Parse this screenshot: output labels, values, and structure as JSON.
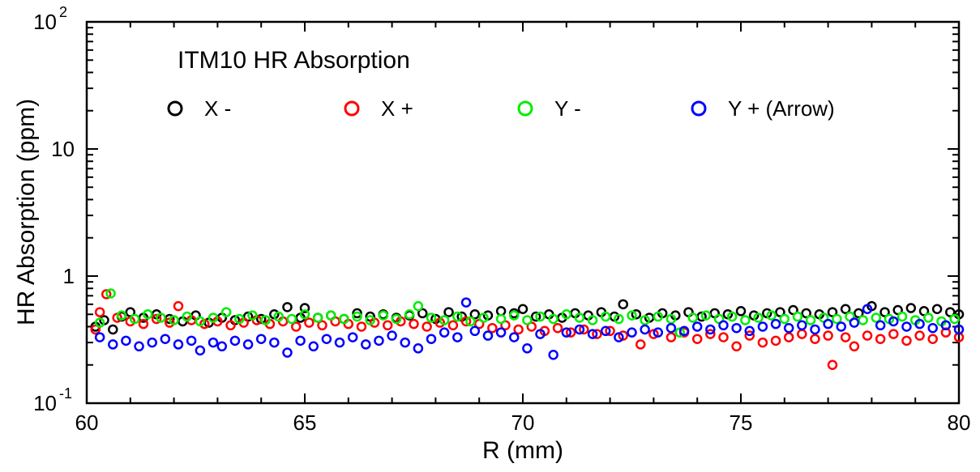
{
  "chart_data": {
    "type": "scatter",
    "title": "ITM10 HR Absorption",
    "xlabel": "R (mm)",
    "ylabel": "HR Absorption (ppm)",
    "xlim": [
      60,
      80
    ],
    "ylim": [
      0.1,
      100
    ],
    "yscale": "log",
    "xticks": [
      60,
      65,
      70,
      75,
      80
    ],
    "x_tick_labels": [
      "60",
      "65",
      "70",
      "75",
      "80"
    ],
    "y_tick_labels": [
      {
        "value": 100,
        "base": "10",
        "exponent": "2"
      },
      {
        "value": 10,
        "base": "10",
        "exponent": ""
      },
      {
        "value": 1,
        "base": "1",
        "exponent": ""
      },
      {
        "value": 0.1,
        "base": "10",
        "exponent": "-1"
      }
    ],
    "grid": false,
    "legend_position": "top",
    "series": [
      {
        "name": "X -",
        "color": "#000000",
        "points": [
          [
            60.2,
            0.4
          ],
          [
            60.4,
            0.45
          ],
          [
            60.6,
            0.38
          ],
          [
            60.8,
            0.48
          ],
          [
            61.0,
            0.52
          ],
          [
            61.3,
            0.47
          ],
          [
            61.6,
            0.5
          ],
          [
            61.9,
            0.46
          ],
          [
            62.2,
            0.44
          ],
          [
            62.5,
            0.49
          ],
          [
            62.8,
            0.43
          ],
          [
            63.1,
            0.47
          ],
          [
            63.4,
            0.45
          ],
          [
            63.7,
            0.48
          ],
          [
            64.0,
            0.46
          ],
          [
            64.3,
            0.5
          ],
          [
            64.6,
            0.57
          ],
          [
            64.9,
            0.47
          ],
          [
            65.0,
            0.56
          ],
          [
            65.3,
            0.47
          ],
          [
            65.6,
            0.49
          ],
          [
            65.9,
            0.46
          ],
          [
            66.2,
            0.51
          ],
          [
            66.5,
            0.48
          ],
          [
            66.8,
            0.5
          ],
          [
            67.1,
            0.47
          ],
          [
            67.4,
            0.49
          ],
          [
            67.7,
            0.51
          ],
          [
            68.0,
            0.46
          ],
          [
            68.3,
            0.52
          ],
          [
            68.6,
            0.48
          ],
          [
            68.9,
            0.5
          ],
          [
            69.2,
            0.49
          ],
          [
            69.5,
            0.53
          ],
          [
            69.8,
            0.51
          ],
          [
            70.0,
            0.55
          ],
          [
            70.3,
            0.48
          ],
          [
            70.6,
            0.5
          ],
          [
            70.9,
            0.47
          ],
          [
            71.2,
            0.51
          ],
          [
            71.5,
            0.49
          ],
          [
            71.8,
            0.52
          ],
          [
            72.1,
            0.48
          ],
          [
            72.3,
            0.6
          ],
          [
            72.6,
            0.5
          ],
          [
            72.9,
            0.47
          ],
          [
            73.2,
            0.51
          ],
          [
            73.5,
            0.49
          ],
          [
            73.8,
            0.52
          ],
          [
            74.1,
            0.48
          ],
          [
            74.4,
            0.51
          ],
          [
            74.7,
            0.5
          ],
          [
            75.0,
            0.53
          ],
          [
            75.3,
            0.49
          ],
          [
            75.6,
            0.51
          ],
          [
            75.9,
            0.52
          ],
          [
            76.2,
            0.54
          ],
          [
            76.5,
            0.51
          ],
          [
            76.8,
            0.5
          ],
          [
            77.1,
            0.52
          ],
          [
            77.4,
            0.55
          ],
          [
            77.7,
            0.51
          ],
          [
            78.0,
            0.58
          ],
          [
            78.3,
            0.52
          ],
          [
            78.6,
            0.54
          ],
          [
            78.9,
            0.56
          ],
          [
            79.2,
            0.53
          ],
          [
            79.5,
            0.55
          ],
          [
            79.8,
            0.52
          ],
          [
            80.0,
            0.5
          ]
        ]
      },
      {
        "name": "X +",
        "color": "#ff0000",
        "points": [
          [
            60.2,
            0.38
          ],
          [
            60.3,
            0.52
          ],
          [
            60.45,
            0.72
          ],
          [
            60.7,
            0.47
          ],
          [
            61.0,
            0.44
          ],
          [
            61.3,
            0.42
          ],
          [
            61.6,
            0.46
          ],
          [
            61.9,
            0.43
          ],
          [
            62.1,
            0.58
          ],
          [
            62.4,
            0.45
          ],
          [
            62.7,
            0.42
          ],
          [
            63.0,
            0.44
          ],
          [
            63.3,
            0.41
          ],
          [
            63.6,
            0.43
          ],
          [
            63.9,
            0.45
          ],
          [
            64.2,
            0.42
          ],
          [
            64.5,
            0.44
          ],
          [
            64.8,
            0.4
          ],
          [
            65.1,
            0.43
          ],
          [
            65.4,
            0.41
          ],
          [
            65.7,
            0.44
          ],
          [
            66.0,
            0.42
          ],
          [
            66.3,
            0.4
          ],
          [
            66.6,
            0.43
          ],
          [
            66.9,
            0.41
          ],
          [
            67.2,
            0.44
          ],
          [
            67.5,
            0.42
          ],
          [
            67.8,
            0.4
          ],
          [
            68.1,
            0.43
          ],
          [
            68.4,
            0.41
          ],
          [
            68.7,
            0.44
          ],
          [
            69.0,
            0.42
          ],
          [
            69.3,
            0.39
          ],
          [
            69.6,
            0.41
          ],
          [
            69.9,
            0.38
          ],
          [
            70.2,
            0.4
          ],
          [
            70.5,
            0.37
          ],
          [
            70.8,
            0.39
          ],
          [
            71.1,
            0.36
          ],
          [
            71.4,
            0.38
          ],
          [
            71.7,
            0.35
          ],
          [
            72.0,
            0.37
          ],
          [
            72.3,
            0.34
          ],
          [
            72.7,
            0.29
          ],
          [
            73.0,
            0.35
          ],
          [
            73.4,
            0.33
          ],
          [
            73.7,
            0.36
          ],
          [
            74.0,
            0.32
          ],
          [
            74.3,
            0.35
          ],
          [
            74.6,
            0.33
          ],
          [
            74.9,
            0.28
          ],
          [
            75.2,
            0.34
          ],
          [
            75.5,
            0.3
          ],
          [
            75.8,
            0.31
          ],
          [
            76.1,
            0.33
          ],
          [
            76.4,
            0.35
          ],
          [
            76.7,
            0.32
          ],
          [
            77.0,
            0.34
          ],
          [
            77.1,
            0.2
          ],
          [
            77.4,
            0.33
          ],
          [
            77.6,
            0.28
          ],
          [
            77.9,
            0.34
          ],
          [
            78.2,
            0.32
          ],
          [
            78.5,
            0.35
          ],
          [
            78.8,
            0.31
          ],
          [
            79.1,
            0.34
          ],
          [
            79.4,
            0.32
          ],
          [
            79.7,
            0.36
          ],
          [
            80.0,
            0.33
          ]
        ]
      },
      {
        "name": "Y -",
        "color": "#00ee00",
        "points": [
          [
            60.3,
            0.43
          ],
          [
            60.55,
            0.73
          ],
          [
            60.8,
            0.49
          ],
          [
            61.1,
            0.46
          ],
          [
            61.4,
            0.5
          ],
          [
            61.7,
            0.47
          ],
          [
            62.0,
            0.45
          ],
          [
            62.3,
            0.48
          ],
          [
            62.6,
            0.44
          ],
          [
            62.9,
            0.47
          ],
          [
            63.2,
            0.52
          ],
          [
            63.5,
            0.46
          ],
          [
            63.8,
            0.49
          ],
          [
            64.1,
            0.45
          ],
          [
            64.4,
            0.48
          ],
          [
            64.7,
            0.46
          ],
          [
            65.0,
            0.5
          ],
          [
            65.3,
            0.47
          ],
          [
            65.6,
            0.49
          ],
          [
            65.9,
            0.46
          ],
          [
            66.2,
            0.48
          ],
          [
            66.5,
            0.45
          ],
          [
            66.8,
            0.49
          ],
          [
            67.1,
            0.46
          ],
          [
            67.4,
            0.5
          ],
          [
            67.6,
            0.58
          ],
          [
            67.9,
            0.47
          ],
          [
            68.2,
            0.45
          ],
          [
            68.5,
            0.48
          ],
          [
            68.8,
            0.44
          ],
          [
            69.1,
            0.47
          ],
          [
            69.2,
            0.34
          ],
          [
            69.5,
            0.46
          ],
          [
            69.8,
            0.49
          ],
          [
            70.1,
            0.45
          ],
          [
            70.4,
            0.48
          ],
          [
            70.7,
            0.46
          ],
          [
            71.0,
            0.5
          ],
          [
            71.3,
            0.47
          ],
          [
            71.6,
            0.45
          ],
          [
            71.9,
            0.48
          ],
          [
            72.2,
            0.46
          ],
          [
            72.5,
            0.49
          ],
          [
            72.8,
            0.45
          ],
          [
            73.1,
            0.48
          ],
          [
            73.4,
            0.46
          ],
          [
            73.6,
            0.36
          ],
          [
            73.9,
            0.47
          ],
          [
            74.2,
            0.49
          ],
          [
            74.5,
            0.46
          ],
          [
            74.8,
            0.48
          ],
          [
            75.1,
            0.45
          ],
          [
            75.4,
            0.47
          ],
          [
            75.7,
            0.49
          ],
          [
            76.0,
            0.46
          ],
          [
            76.3,
            0.48
          ],
          [
            76.6,
            0.45
          ],
          [
            76.9,
            0.47
          ],
          [
            77.2,
            0.46
          ],
          [
            77.5,
            0.48
          ],
          [
            77.8,
            0.45
          ],
          [
            78.1,
            0.47
          ],
          [
            78.4,
            0.46
          ],
          [
            78.7,
            0.48
          ],
          [
            79.0,
            0.45
          ],
          [
            79.3,
            0.47
          ],
          [
            79.6,
            0.44
          ],
          [
            79.9,
            0.46
          ]
        ]
      },
      {
        "name": "Y + (Arrow)",
        "color": "#0000ff",
        "points": [
          [
            60.3,
            0.33
          ],
          [
            60.6,
            0.29
          ],
          [
            60.9,
            0.31
          ],
          [
            61.2,
            0.28
          ],
          [
            61.5,
            0.3
          ],
          [
            61.8,
            0.32
          ],
          [
            62.1,
            0.29
          ],
          [
            62.4,
            0.31
          ],
          [
            62.6,
            0.26
          ],
          [
            62.9,
            0.3
          ],
          [
            63.1,
            0.28
          ],
          [
            63.4,
            0.31
          ],
          [
            63.7,
            0.29
          ],
          [
            64.0,
            0.32
          ],
          [
            64.3,
            0.3
          ],
          [
            64.6,
            0.25
          ],
          [
            64.9,
            0.31
          ],
          [
            65.2,
            0.28
          ],
          [
            65.5,
            0.32
          ],
          [
            65.8,
            0.3
          ],
          [
            66.1,
            0.33
          ],
          [
            66.4,
            0.29
          ],
          [
            66.7,
            0.31
          ],
          [
            67.0,
            0.34
          ],
          [
            67.3,
            0.3
          ],
          [
            67.6,
            0.27
          ],
          [
            67.9,
            0.32
          ],
          [
            68.2,
            0.36
          ],
          [
            68.5,
            0.33
          ],
          [
            68.7,
            0.62
          ],
          [
            68.9,
            0.37
          ],
          [
            69.2,
            0.34
          ],
          [
            69.5,
            0.36
          ],
          [
            69.8,
            0.33
          ],
          [
            70.1,
            0.27
          ],
          [
            70.4,
            0.35
          ],
          [
            70.7,
            0.24
          ],
          [
            71.0,
            0.36
          ],
          [
            71.3,
            0.38
          ],
          [
            71.6,
            0.35
          ],
          [
            71.9,
            0.37
          ],
          [
            72.2,
            0.33
          ],
          [
            72.5,
            0.36
          ],
          [
            72.8,
            0.38
          ],
          [
            73.1,
            0.36
          ],
          [
            73.4,
            0.39
          ],
          [
            73.7,
            0.37
          ],
          [
            74.0,
            0.4
          ],
          [
            74.3,
            0.38
          ],
          [
            74.6,
            0.41
          ],
          [
            74.9,
            0.39
          ],
          [
            75.2,
            0.37
          ],
          [
            75.5,
            0.4
          ],
          [
            75.8,
            0.42
          ],
          [
            76.1,
            0.39
          ],
          [
            76.4,
            0.41
          ],
          [
            76.7,
            0.38
          ],
          [
            77.0,
            0.42
          ],
          [
            77.3,
            0.4
          ],
          [
            77.6,
            0.43
          ],
          [
            77.9,
            0.55
          ],
          [
            78.2,
            0.41
          ],
          [
            78.5,
            0.44
          ],
          [
            78.8,
            0.4
          ],
          [
            79.1,
            0.42
          ],
          [
            79.4,
            0.39
          ],
          [
            79.7,
            0.41
          ],
          [
            80.0,
            0.38
          ]
        ]
      }
    ]
  }
}
